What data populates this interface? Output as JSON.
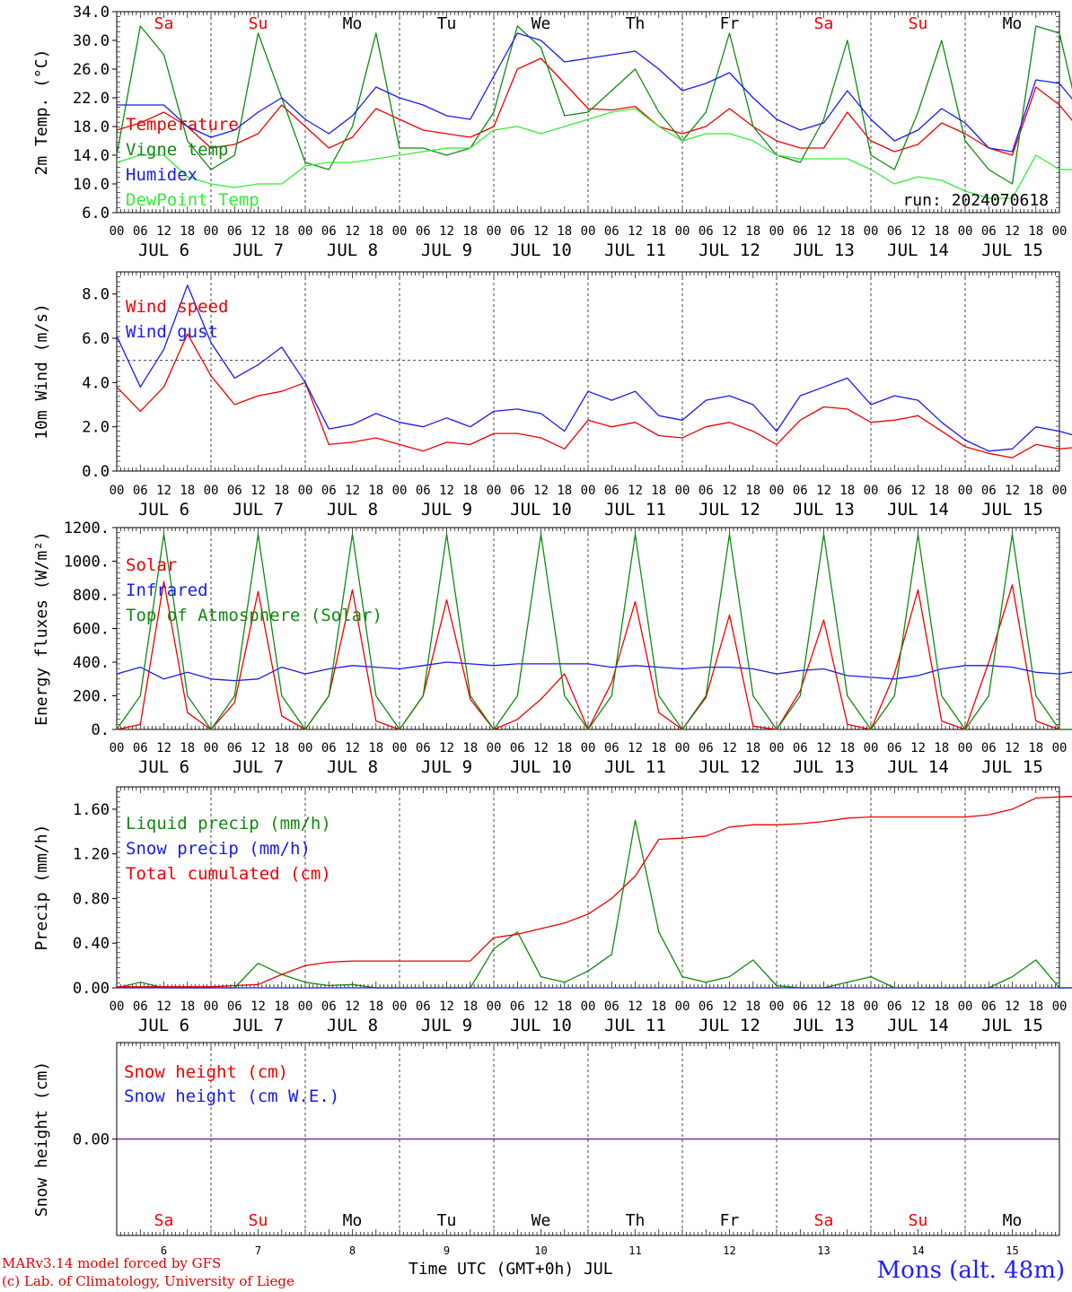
{
  "meta": {
    "run_label": "run: 2024070618",
    "footer_model": "MARv3.14 model forced by GFS",
    "footer_lab": "(c) Lab. of Climatology, University of Liege",
    "footer_axis": "Time UTC (GMT+0h) JUL",
    "station": "Mons (alt. 48m)"
  },
  "colors": {
    "red": "#ee0000",
    "green": "#118811",
    "blue": "#1a1aee",
    "lightgreen": "#33ee33",
    "purple": "#7a28a0"
  },
  "days": {
    "dates": [
      6,
      7,
      8,
      9,
      10,
      11,
      12,
      13,
      14,
      15
    ],
    "weekdays": [
      "Sa",
      "Su",
      "Mo",
      "Tu",
      "We",
      "Th",
      "Fr",
      "Sa",
      "Su",
      "Mo"
    ],
    "weekend": [
      true,
      true,
      false,
      false,
      false,
      false,
      false,
      true,
      true,
      false
    ],
    "hour_labels": [
      "00",
      "06",
      "12",
      "18"
    ],
    "month": "JUL",
    "final_hour_label": "00"
  },
  "chart_data": [
    {
      "type": "line",
      "ylabel": "2m Temp. (°C)",
      "ylim": [
        6,
        34
      ],
      "yticks": [
        "6.0",
        "10.0",
        "14.0",
        "18.0",
        "22.0",
        "26.0",
        "30.0",
        "34.0"
      ],
      "ytick_values": [
        6,
        10,
        14,
        18,
        22,
        26,
        30,
        34
      ],
      "x_start_hours": 0,
      "x_step_hours": 6,
      "series": [
        {
          "name": "Temperature",
          "color": "red",
          "values": [
            17.5,
            18.5,
            20.0,
            18.0,
            15.0,
            15.5,
            17.0,
            21.0,
            18.0,
            15.0,
            16.5,
            20.5,
            19.0,
            17.5,
            17.0,
            16.5,
            18.0,
            26.0,
            27.5,
            24.0,
            20.5,
            20.3,
            20.8,
            18.0,
            17.0,
            18.0,
            20.5,
            18.0,
            16.0,
            15.0,
            15.0,
            20.0,
            16.0,
            14.5,
            15.5,
            18.5,
            17.0,
            15.0,
            14.0,
            23.5,
            21.0,
            17.0,
            18.5,
            24.0,
            19.5
          ]
        },
        {
          "name": "Vigne temp",
          "color": "green",
          "values": [
            14.0,
            32.0,
            28.0,
            16.0,
            12.0,
            14.0,
            31.0,
            22.0,
            13.0,
            12.0,
            18.0,
            31.0,
            15.0,
            15.0,
            14.0,
            15.0,
            20.0,
            32.0,
            29.0,
            19.5,
            20.0,
            23.0,
            26.0,
            20.0,
            16.0,
            20.0,
            31.0,
            18.0,
            14.0,
            13.0,
            19.0,
            30.0,
            14.0,
            12.0,
            20.0,
            30.0,
            16.0,
            12.0,
            10.0,
            32.0,
            31.0,
            17.0,
            19.0,
            33.0,
            17.0
          ]
        },
        {
          "name": "Humidex",
          "color": "blue",
          "values": [
            21.0,
            21.0,
            21.0,
            18.0,
            16.5,
            17.5,
            20.0,
            22.0,
            19.0,
            17.0,
            19.5,
            23.5,
            22.0,
            21.0,
            19.5,
            19.0,
            25.0,
            31.0,
            30.0,
            27.0,
            27.5,
            28.0,
            28.5,
            26.0,
            23.0,
            24.0,
            25.5,
            22.0,
            19.0,
            17.5,
            18.5,
            23.0,
            19.0,
            16.0,
            17.5,
            20.5,
            18.5,
            15.0,
            14.5,
            24.5,
            24.0,
            20.0,
            19.5,
            25.5,
            21.0
          ]
        },
        {
          "name": "DewPoint Temp",
          "color": "lightgreen",
          "values": [
            13.0,
            14.0,
            14.0,
            11.0,
            10.0,
            9.5,
            10.0,
            10.0,
            12.5,
            13.0,
            13.0,
            13.5,
            14.0,
            14.5,
            15.0,
            15.0,
            17.5,
            18.0,
            17.0,
            18.0,
            19.0,
            20.0,
            20.5,
            18.0,
            16.0,
            17.0,
            17.0,
            16.0,
            14.0,
            13.5,
            13.5,
            13.5,
            12.0,
            10.0,
            11.0,
            10.5,
            9.0,
            8.0,
            8.0,
            14.0,
            12.0,
            12.0,
            14.0,
            10.0,
            9.5
          ]
        }
      ]
    },
    {
      "type": "line",
      "ylabel": "10m Wind (m/s)",
      "ylim": [
        0,
        9
      ],
      "yticks": [
        "0.0",
        "2.0",
        "4.0",
        "6.0",
        "8.0"
      ],
      "ytick_values": [
        0,
        2,
        4,
        6,
        8
      ],
      "reference_line": 5,
      "x_start_hours": 0,
      "x_step_hours": 6,
      "series": [
        {
          "name": "Wind speed",
          "color": "red",
          "values": [
            3.8,
            2.7,
            3.8,
            6.2,
            4.3,
            3.0,
            3.4,
            3.6,
            4.0,
            1.2,
            1.3,
            1.5,
            1.2,
            0.9,
            1.3,
            1.2,
            1.7,
            1.7,
            1.5,
            1.0,
            2.3,
            2.0,
            2.2,
            1.6,
            1.5,
            2.0,
            2.2,
            1.8,
            1.2,
            2.3,
            2.9,
            2.8,
            2.2,
            2.3,
            2.5,
            1.8,
            1.1,
            0.8,
            0.6,
            1.2,
            1.0,
            1.1,
            1.3,
            2.6,
            1.0
          ]
        },
        {
          "name": "Wind gust",
          "color": "blue",
          "values": [
            6.1,
            3.8,
            5.5,
            8.4,
            5.8,
            4.2,
            4.8,
            5.6,
            4.0,
            1.9,
            2.1,
            2.6,
            2.2,
            2.0,
            2.4,
            2.0,
            2.7,
            2.8,
            2.6,
            1.8,
            3.6,
            3.2,
            3.6,
            2.5,
            2.3,
            3.2,
            3.4,
            3.0,
            1.8,
            3.4,
            3.8,
            4.2,
            3.0,
            3.4,
            3.2,
            2.2,
            1.4,
            0.9,
            1.0,
            2.0,
            1.8,
            1.5,
            1.6,
            4.4,
            1.4
          ]
        }
      ]
    },
    {
      "type": "line",
      "ylabel": "Energy fluxes (W/m²)",
      "ylim": [
        0,
        1200
      ],
      "yticks": [
        "0.",
        "200.",
        "400.",
        "600.",
        "800.",
        "1000.",
        "1200."
      ],
      "ytick_values": [
        0,
        200,
        400,
        600,
        800,
        1000,
        1200
      ],
      "x_start_hours": 0,
      "x_step_hours": 6,
      "series": [
        {
          "name": "Solar",
          "color": "red",
          "values": [
            0,
            30,
            880,
            100,
            0,
            160,
            820,
            80,
            0,
            200,
            830,
            50,
            0,
            200,
            770,
            180,
            0,
            60,
            180,
            330,
            0,
            280,
            760,
            100,
            0,
            190,
            680,
            20,
            0,
            230,
            650,
            30,
            0,
            330,
            830,
            50,
            0,
            400,
            860,
            50,
            0,
            0,
            0,
            0,
            0
          ]
        },
        {
          "name": "Infrared",
          "color": "blue",
          "values": [
            330,
            370,
            300,
            340,
            300,
            290,
            300,
            370,
            330,
            360,
            380,
            370,
            360,
            380,
            400,
            390,
            380,
            390,
            390,
            390,
            390,
            370,
            380,
            370,
            360,
            370,
            370,
            360,
            330,
            350,
            360,
            320,
            310,
            300,
            320,
            360,
            380,
            380,
            370,
            340,
            330,
            350,
            330,
            340,
            350
          ]
        },
        {
          "name": "Top of Atmosphere (Solar)",
          "color": "green",
          "values": [
            0,
            200,
            1160,
            200,
            0,
            200,
            1160,
            200,
            0,
            200,
            1160,
            200,
            0,
            200,
            1160,
            200,
            0,
            200,
            1160,
            200,
            0,
            200,
            1160,
            200,
            0,
            200,
            1160,
            200,
            0,
            200,
            1160,
            200,
            0,
            200,
            1160,
            200,
            0,
            200,
            1160,
            200,
            0,
            0,
            0,
            0,
            0
          ]
        }
      ]
    },
    {
      "type": "line",
      "ylabel": "Precip (mm/h)",
      "ylim": [
        0,
        1.8
      ],
      "yticks": [
        "0.00",
        "0.40",
        "0.80",
        "1.20",
        "1.60"
      ],
      "ytick_values": [
        0,
        0.4,
        0.8,
        1.2,
        1.6
      ],
      "x_start_hours": 0,
      "x_step_hours": 6,
      "series": [
        {
          "name": "Liquid precip (mm/h)",
          "color": "green",
          "values": [
            0,
            0.05,
            0,
            0,
            0,
            0,
            0.22,
            0.12,
            0.05,
            0.02,
            0.03,
            0,
            0,
            0,
            0,
            0,
            0.35,
            0.5,
            0.1,
            0.05,
            0.15,
            0.3,
            1.5,
            0.5,
            0.1,
            0.05,
            0.1,
            0.25,
            0.02,
            0,
            0,
            0.05,
            0.1,
            0,
            0,
            0,
            0,
            0,
            0.1,
            0.25,
            0,
            0,
            0.1,
            0,
            0
          ]
        },
        {
          "name": "Snow precip (mm/h)",
          "color": "blue",
          "values": [
            0,
            0,
            0,
            0,
            0,
            0,
            0,
            0,
            0,
            0,
            0,
            0,
            0,
            0,
            0,
            0,
            0,
            0,
            0,
            0,
            0,
            0,
            0,
            0,
            0,
            0,
            0,
            0,
            0,
            0,
            0,
            0,
            0,
            0,
            0,
            0,
            0,
            0,
            0,
            0,
            0,
            0,
            0,
            0,
            0
          ]
        },
        {
          "name": "Total cumulated (cm)",
          "color": "red",
          "values": [
            0.01,
            0.01,
            0.01,
            0.01,
            0.01,
            0.02,
            0.03,
            0.12,
            0.2,
            0.23,
            0.24,
            0.24,
            0.24,
            0.24,
            0.24,
            0.24,
            0.45,
            0.48,
            0.53,
            0.58,
            0.66,
            0.8,
            1.0,
            1.33,
            1.34,
            1.36,
            1.44,
            1.46,
            1.46,
            1.47,
            1.49,
            1.52,
            1.53,
            1.53,
            1.53,
            1.53,
            1.53,
            1.55,
            1.6,
            1.7,
            1.71,
            1.72,
            1.73,
            1.73,
            1.73
          ]
        }
      ]
    },
    {
      "type": "line",
      "ylabel": "Snow height (cm)",
      "ylim": [
        -1,
        1
      ],
      "yticks": [
        "0.00"
      ],
      "ytick_values": [
        0
      ],
      "x_start_hours": 0,
      "x_step_hours": 6,
      "series": [
        {
          "name": "Snow height (cm)",
          "color": "red",
          "values": [
            0,
            0
          ]
        },
        {
          "name": "Snow height (cm W.E.)",
          "color": "blue",
          "values": [
            0,
            0
          ]
        }
      ]
    }
  ]
}
